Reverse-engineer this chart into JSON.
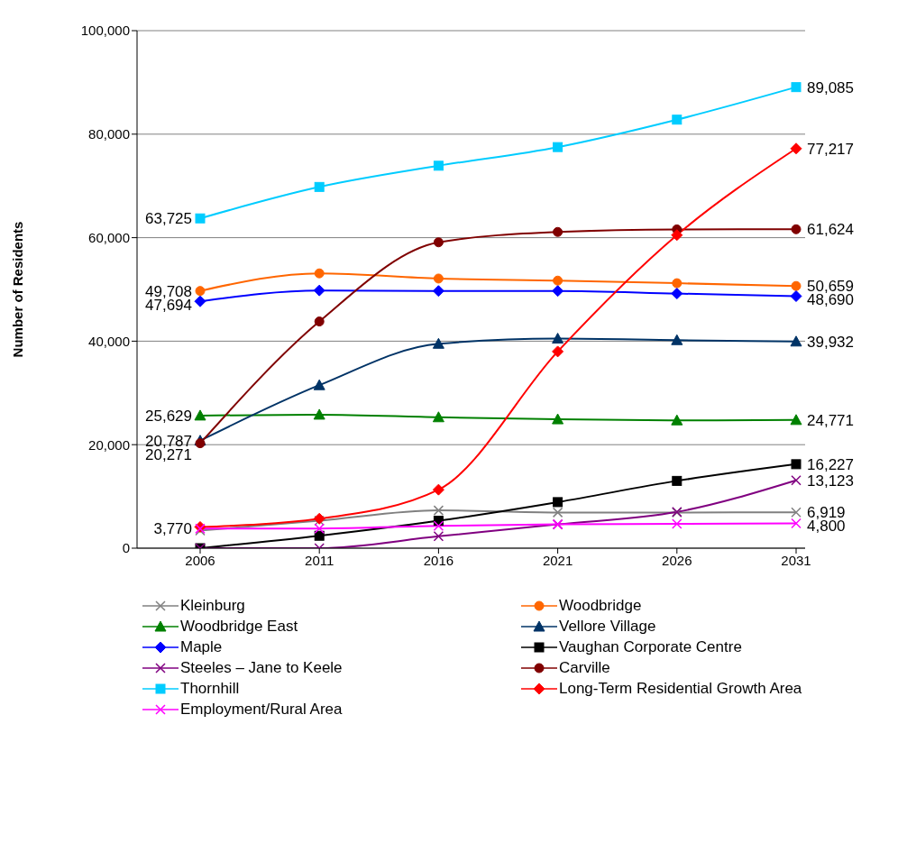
{
  "chart_data": {
    "type": "line",
    "ylabel": "Number of Residents",
    "categories": [
      "2006",
      "2011",
      "2016",
      "2021",
      "2026",
      "2031"
    ],
    "ylim": [
      0,
      100000
    ],
    "yticks": [
      {
        "value": 0,
        "label": "0"
      },
      {
        "value": 20000,
        "label": "20,000"
      },
      {
        "value": 40000,
        "label": "40,000"
      },
      {
        "value": 60000,
        "label": "60,000"
      },
      {
        "value": 80000,
        "label": "80,000"
      },
      {
        "value": 100000,
        "label": "100,000"
      }
    ],
    "grid": "y",
    "legend": "bottom",
    "series": [
      {
        "name": "Kleinburg",
        "color": "#808080",
        "marker": "cross",
        "values": [
          3400,
          5300,
          7300,
          6900,
          6900,
          6919
        ],
        "value_labels": [
          null,
          null,
          null,
          null,
          null,
          "6,919"
        ]
      },
      {
        "name": "Woodbridge",
        "color": "#ff6600",
        "marker": "circle",
        "values": [
          49708,
          53100,
          52100,
          51700,
          51200,
          50659
        ],
        "value_labels": [
          "49,708",
          null,
          null,
          null,
          null,
          "50,659"
        ]
      },
      {
        "name": "Woodbridge East",
        "color": "#008000",
        "marker": "triangle",
        "values": [
          25629,
          25800,
          25300,
          24900,
          24700,
          24771
        ],
        "value_labels": [
          "25,629",
          null,
          null,
          null,
          null,
          "24,771"
        ]
      },
      {
        "name": "Vellore Village",
        "color": "#003366",
        "marker": "triangle",
        "values": [
          20787,
          31500,
          39500,
          40500,
          40200,
          39932
        ],
        "value_labels": [
          "20,787",
          null,
          null,
          null,
          null,
          "39,932"
        ]
      },
      {
        "name": "Maple",
        "color": "#0000ff",
        "marker": "diamond",
        "values": [
          47694,
          49800,
          49700,
          49700,
          49200,
          48690
        ],
        "value_labels": [
          "47,694",
          null,
          null,
          null,
          null,
          "48,690"
        ]
      },
      {
        "name": "Vaughan Corporate Centre",
        "color": "#000000",
        "marker": "square",
        "values": [
          0,
          2400,
          5300,
          8900,
          13000,
          16227
        ],
        "value_labels": [
          null,
          null,
          null,
          null,
          null,
          "16,227"
        ]
      },
      {
        "name": "Steeles – Jane to Keele",
        "color": "#800080",
        "marker": "cross",
        "values": [
          0,
          0,
          2300,
          4600,
          7000,
          13123
        ],
        "value_labels": [
          null,
          null,
          null,
          null,
          null,
          "13,123"
        ]
      },
      {
        "name": "Carville",
        "color": "#800000",
        "marker": "circle",
        "values": [
          20271,
          43800,
          59100,
          61100,
          61600,
          61624
        ],
        "value_labels": [
          "20,271",
          null,
          null,
          null,
          null,
          "61,624"
        ]
      },
      {
        "name": "Thornhill",
        "color": "#00ccff",
        "marker": "square",
        "values": [
          63725,
          69800,
          73900,
          77500,
          82800,
          89085
        ],
        "value_labels": [
          "63,725",
          null,
          null,
          null,
          null,
          "89,085"
        ]
      },
      {
        "name": "Long-Term Residential Growth Area",
        "color": "#ff0000",
        "marker": "diamond",
        "values": [
          4100,
          5700,
          11300,
          38000,
          60500,
          77217
        ],
        "value_labels": [
          null,
          null,
          null,
          null,
          null,
          "77,217"
        ]
      },
      {
        "name": "Employment/Rural Area",
        "color": "#ff00ff",
        "marker": "cross",
        "values": [
          3770,
          3800,
          4300,
          4600,
          4700,
          4800
        ],
        "value_labels": [
          "3,770",
          null,
          null,
          null,
          null,
          "4,800"
        ]
      }
    ]
  }
}
